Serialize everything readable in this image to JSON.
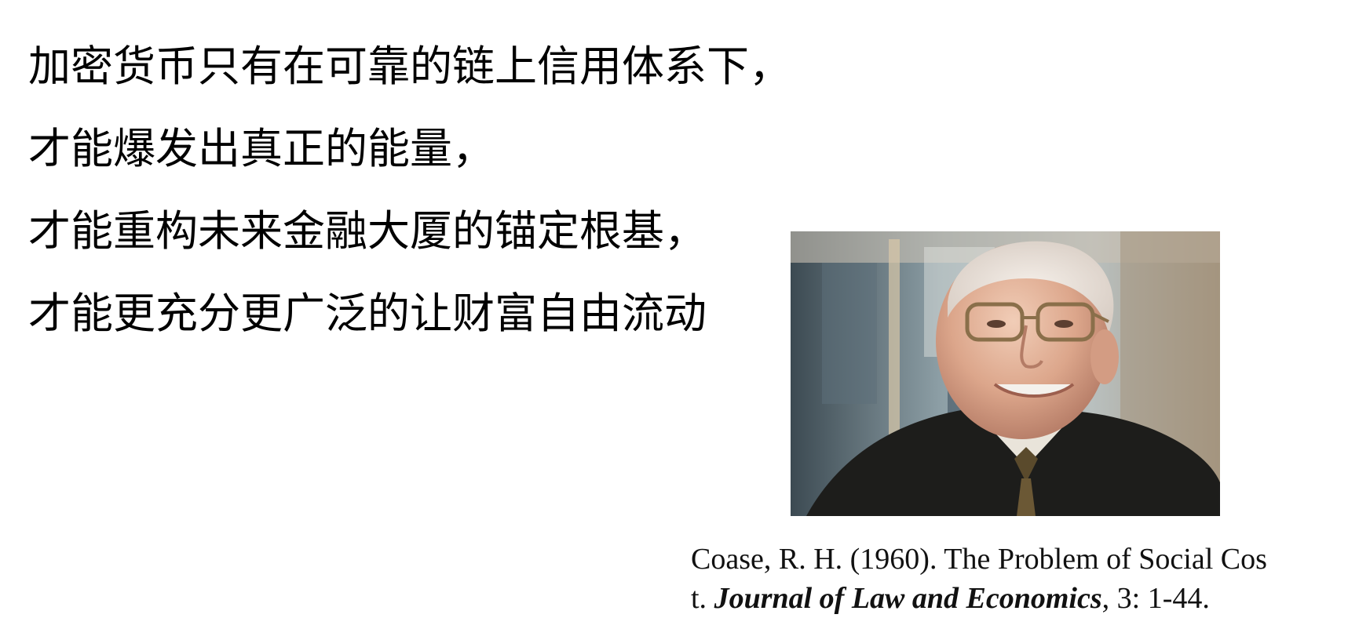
{
  "headline": {
    "lines": [
      "加密货币只有在可靠的链上信用体系下，",
      "才能爆发出真正的能量，",
      "才能重构未来金融大厦的锚定根基，",
      "才能更充分更广泛的让财富自由流动"
    ]
  },
  "photo": {
    "subject": "portrait-of-elderly-man-with-glasses"
  },
  "citation": {
    "line1": "Coase, R. H. (1960). The Problem of Social Cos",
    "line2_prefix": "t. ",
    "journal": "Journal of Law and Economics",
    "line2_suffix": ", 3: 1-44."
  }
}
